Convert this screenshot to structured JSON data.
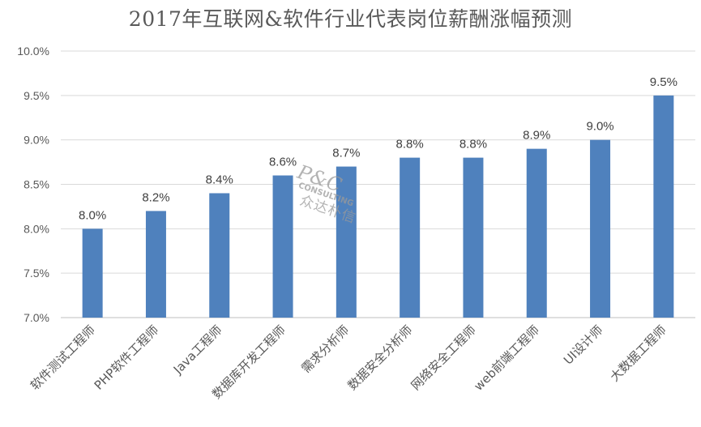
{
  "chart_data": {
    "type": "bar",
    "title": "2017年互联网&软件行业代表岗位薪酬涨幅预测",
    "xlabel": "",
    "ylabel": "",
    "categories": [
      "软件测试工程师",
      "PHP软件工程师",
      "Java工程师",
      "数据库开发工程师",
      "需求分析师",
      "数据安全分析师",
      "网络安全工程师",
      "web前端工程师",
      "UI设计师",
      "大数据工程师"
    ],
    "values": [
      8.0,
      8.2,
      8.4,
      8.6,
      8.7,
      8.8,
      8.8,
      8.9,
      9.0,
      9.5
    ],
    "data_labels": [
      "8.0%",
      "8.2%",
      "8.4%",
      "8.6%",
      "8.7%",
      "8.8%",
      "8.8%",
      "8.9%",
      "9.0%",
      "9.5%"
    ],
    "ylim": [
      7.0,
      10.0
    ],
    "yticks": [
      7.0,
      7.5,
      8.0,
      8.5,
      9.0,
      9.5,
      10.0
    ],
    "ytick_labels": [
      "7.0%",
      "7.5%",
      "8.0%",
      "8.5%",
      "9.0%",
      "9.5%",
      "10.0%"
    ],
    "grid": true,
    "legend": "none",
    "colors": {
      "bar": "#4f81bd",
      "grid": "#d9d9d9",
      "text": "#595959"
    }
  },
  "watermark": {
    "logo": "P&C",
    "sub": "CONSULTING",
    "cn": "众达朴信"
  }
}
